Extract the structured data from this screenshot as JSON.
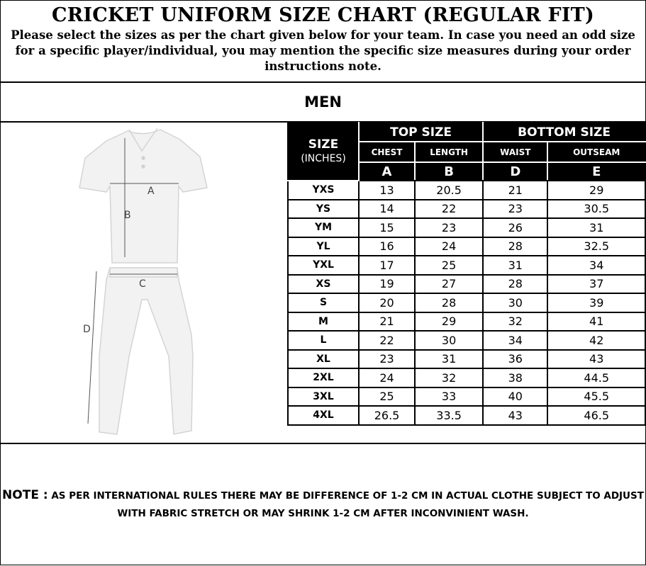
{
  "header": {
    "title": "CRICKET UNIFORM SIZE CHART (REGULAR FIT)",
    "subtitle": "Please select the sizes as per the chart given below for your team. In case you need an odd size for a specific player/individual, you may mention the specific size measures during your order instructions note."
  },
  "section": "MEN",
  "illustration": {
    "labels": [
      "A",
      "B",
      "C",
      "D"
    ]
  },
  "table": {
    "size_header": "SIZE",
    "size_unit": "(INCHES)",
    "groups": [
      "TOP SIZE",
      "BOTTOM SIZE"
    ],
    "columns": [
      "CHEST",
      "LENGTH",
      "WAIST",
      "OUTSEAM"
    ],
    "letters": [
      "A",
      "B",
      "D",
      "E"
    ],
    "rows": [
      [
        "YXS",
        "13",
        "20.5",
        "21",
        "29"
      ],
      [
        "YS",
        "14",
        "22",
        "23",
        "30.5"
      ],
      [
        "YM",
        "15",
        "23",
        "26",
        "31"
      ],
      [
        "YL",
        "16",
        "24",
        "28",
        "32.5"
      ],
      [
        "YXL",
        "17",
        "25",
        "31",
        "34"
      ],
      [
        "XS",
        "19",
        "27",
        "28",
        "37"
      ],
      [
        "S",
        "20",
        "28",
        "30",
        "39"
      ],
      [
        "M",
        "21",
        "29",
        "32",
        "41"
      ],
      [
        "L",
        "22",
        "30",
        "34",
        "42"
      ],
      [
        "XL",
        "23",
        "31",
        "36",
        "43"
      ],
      [
        "2XL",
        "24",
        "32",
        "38",
        "44.5"
      ],
      [
        "3XL",
        "25",
        "33",
        "40",
        "45.5"
      ],
      [
        "4XL",
        "26.5",
        "33.5",
        "43",
        "46.5"
      ]
    ]
  },
  "note": {
    "label": "NOTE :",
    "text": "AS PER INTERNATIONAL RULES THERE MAY BE DIFFERENCE OF 1-2 CM IN ACTUAL CLOTHE SUBJECT TO ADJUST WITH FABRIC STRETCH OR MAY SHRINK 1-2 CM AFTER INCONVINIENT WASH."
  }
}
